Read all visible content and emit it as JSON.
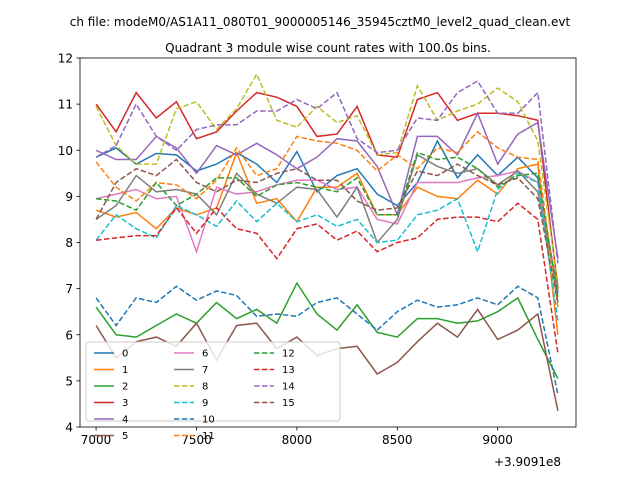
{
  "chart_data": {
    "type": "line",
    "suptitle": "ch file: modeM0/AS1A11_080T01_9000005146_35945cztM0_level2_quad_clean.evt",
    "title": "Quadrant 3 module wise count rates with 100.0s bins.",
    "xlabel": "",
    "ylabel": "",
    "x_offset_label": "+3.9091e8",
    "xlim": [
      6920,
      9390
    ],
    "ylim": [
      4,
      12
    ],
    "xticks": [
      7000,
      7500,
      8000,
      8500,
      9000
    ],
    "yticks": [
      4,
      5,
      6,
      7,
      8,
      9,
      10,
      11,
      12
    ],
    "grid": false,
    "legend_position": "lower-left",
    "x": [
      7000,
      7100,
      7200,
      7300,
      7400,
      7500,
      7600,
      7700,
      7800,
      7900,
      8000,
      8100,
      8200,
      8300,
      8400,
      8500,
      8600,
      8700,
      8800,
      8900,
      9000,
      9100,
      9200,
      9300
    ],
    "series": [
      {
        "name": "0",
        "color": "#1f77b4",
        "dash": "solid",
        "values": [
          9.85,
          10.05,
          9.7,
          9.93,
          9.9,
          9.55,
          9.7,
          9.95,
          9.7,
          9.3,
          9.97,
          9.1,
          9.45,
          9.6,
          9.05,
          8.8,
          9.3,
          10.2,
          9.4,
          9.9,
          9.45,
          9.85,
          9.4,
          6.9
        ]
      },
      {
        "name": "1",
        "color": "#ff7f0e",
        "dash": "solid",
        "values": [
          8.7,
          8.55,
          8.65,
          8.3,
          8.75,
          8.6,
          8.75,
          9.95,
          8.85,
          8.95,
          8.45,
          9.2,
          9.2,
          9.5,
          8.6,
          8.6,
          9.2,
          9.0,
          8.95,
          9.35,
          9.05,
          9.6,
          9.7,
          6.0
        ]
      },
      {
        "name": "2",
        "color": "#2ca02c",
        "dash": "solid",
        "values": [
          6.6,
          6.0,
          5.95,
          6.2,
          6.45,
          6.25,
          6.7,
          6.35,
          6.55,
          6.25,
          7.12,
          6.45,
          6.1,
          6.65,
          6.05,
          5.95,
          6.35,
          6.35,
          6.25,
          6.3,
          6.5,
          6.8,
          5.9,
          5.05
        ]
      },
      {
        "name": "3",
        "color": "#d62728",
        "dash": "solid",
        "values": [
          11.0,
          10.4,
          11.25,
          10.7,
          11.05,
          10.25,
          10.4,
          10.85,
          11.25,
          11.15,
          10.95,
          10.3,
          10.35,
          10.95,
          9.9,
          9.85,
          11.1,
          11.25,
          10.65,
          10.8,
          10.8,
          10.75,
          10.65,
          7.0
        ]
      },
      {
        "name": "4",
        "color": "#9467bd",
        "dash": "solid",
        "values": [
          10.0,
          9.8,
          9.8,
          10.3,
          10.05,
          9.5,
          10.1,
          9.9,
          10.15,
          9.9,
          9.6,
          9.85,
          10.25,
          10.2,
          9.65,
          8.6,
          10.3,
          10.3,
          9.9,
          10.8,
          9.7,
          10.35,
          10.6,
          7.65
        ]
      },
      {
        "name": "5",
        "color": "#8c564b",
        "dash": "solid",
        "values": [
          6.2,
          5.5,
          5.85,
          5.95,
          5.75,
          6.25,
          5.45,
          6.2,
          6.25,
          5.7,
          5.95,
          5.55,
          5.7,
          5.75,
          5.15,
          5.4,
          5.85,
          6.25,
          5.95,
          6.55,
          5.9,
          6.1,
          6.45,
          4.35
        ]
      },
      {
        "name": "6",
        "color": "#e377c2",
        "dash": "solid",
        "values": [
          8.95,
          9.05,
          9.15,
          8.95,
          9.0,
          7.8,
          9.2,
          9.05,
          9.1,
          9.25,
          9.35,
          9.35,
          9.15,
          9.2,
          8.5,
          8.4,
          9.3,
          9.3,
          9.3,
          9.4,
          9.45,
          9.55,
          9.3,
          6.95
        ]
      },
      {
        "name": "7",
        "color": "#7f7f7f",
        "dash": "solid",
        "values": [
          8.5,
          8.8,
          9.45,
          9.1,
          9.15,
          9.05,
          8.6,
          9.5,
          9.05,
          8.85,
          9.2,
          9.15,
          8.55,
          9.2,
          8.0,
          8.5,
          9.9,
          9.65,
          9.5,
          9.6,
          9.25,
          9.55,
          9.1,
          6.95
        ]
      },
      {
        "name": "8",
        "color": "#bcbd22",
        "dash": "dashed",
        "values": [
          10.95,
          10.1,
          9.7,
          9.7,
          10.9,
          11.05,
          10.45,
          10.9,
          11.65,
          10.65,
          10.5,
          10.95,
          10.6,
          10.75,
          9.9,
          9.95,
          11.4,
          10.65,
          10.85,
          11.0,
          11.35,
          11.05,
          10.2,
          7.1
        ]
      },
      {
        "name": "9",
        "color": "#17becf",
        "dash": "dashed",
        "values": [
          8.05,
          8.6,
          8.3,
          8.1,
          8.8,
          8.6,
          8.35,
          8.9,
          8.45,
          8.85,
          8.45,
          8.6,
          8.35,
          8.5,
          8.0,
          8.05,
          8.6,
          8.7,
          8.95,
          7.8,
          9.15,
          9.5,
          9.3,
          6.3
        ]
      },
      {
        "name": "10",
        "color": "#1f77b4",
        "dash": "dashed",
        "values": [
          6.8,
          6.2,
          6.8,
          6.7,
          7.05,
          6.75,
          6.95,
          6.85,
          6.4,
          6.45,
          6.4,
          6.7,
          6.8,
          6.45,
          6.1,
          6.5,
          6.75,
          6.6,
          6.65,
          6.8,
          6.65,
          7.05,
          6.8,
          4.7
        ]
      },
      {
        "name": "11",
        "color": "#ff7f0e",
        "dash": "dashed",
        "values": [
          9.75,
          9.2,
          8.9,
          9.3,
          9.25,
          8.95,
          9.35,
          10.05,
          9.45,
          9.6,
          10.3,
          10.2,
          10.15,
          10.0,
          9.55,
          9.9,
          9.6,
          10.05,
          9.95,
          10.4,
          10.05,
          9.85,
          9.8,
          6.6
        ]
      },
      {
        "name": "12",
        "color": "#2ca02c",
        "dash": "dashed",
        "values": [
          8.95,
          8.9,
          8.7,
          9.3,
          8.8,
          9.05,
          9.4,
          9.4,
          9.0,
          9.25,
          9.3,
          9.2,
          9.1,
          9.4,
          8.6,
          8.6,
          9.95,
          9.8,
          9.85,
          9.6,
          9.2,
          9.45,
          9.5,
          6.8
        ]
      },
      {
        "name": "13",
        "color": "#d62728",
        "dash": "dashed",
        "values": [
          8.05,
          8.1,
          8.15,
          8.15,
          8.75,
          8.2,
          8.75,
          8.3,
          8.2,
          7.65,
          8.3,
          8.4,
          8.05,
          8.25,
          7.8,
          8.0,
          8.1,
          8.5,
          8.55,
          8.55,
          8.45,
          8.85,
          8.5,
          5.6
        ]
      },
      {
        "name": "14",
        "color": "#9467bd",
        "dash": "dashed",
        "values": [
          9.85,
          10.1,
          11.0,
          10.3,
          10.0,
          10.45,
          10.55,
          10.55,
          10.85,
          10.85,
          11.1,
          10.9,
          11.25,
          10.25,
          9.95,
          10.0,
          10.7,
          10.65,
          11.25,
          11.5,
          10.8,
          10.8,
          11.25,
          7.55
        ]
      },
      {
        "name": "15",
        "color": "#8c564b",
        "dash": "dashed",
        "values": [
          8.5,
          9.3,
          9.6,
          9.45,
          9.8,
          9.3,
          9.1,
          9.35,
          9.3,
          9.5,
          9.6,
          9.35,
          9.35,
          8.9,
          8.7,
          8.75,
          9.55,
          9.45,
          9.7,
          9.45,
          9.25,
          9.4,
          8.95,
          6.7
        ]
      }
    ]
  }
}
